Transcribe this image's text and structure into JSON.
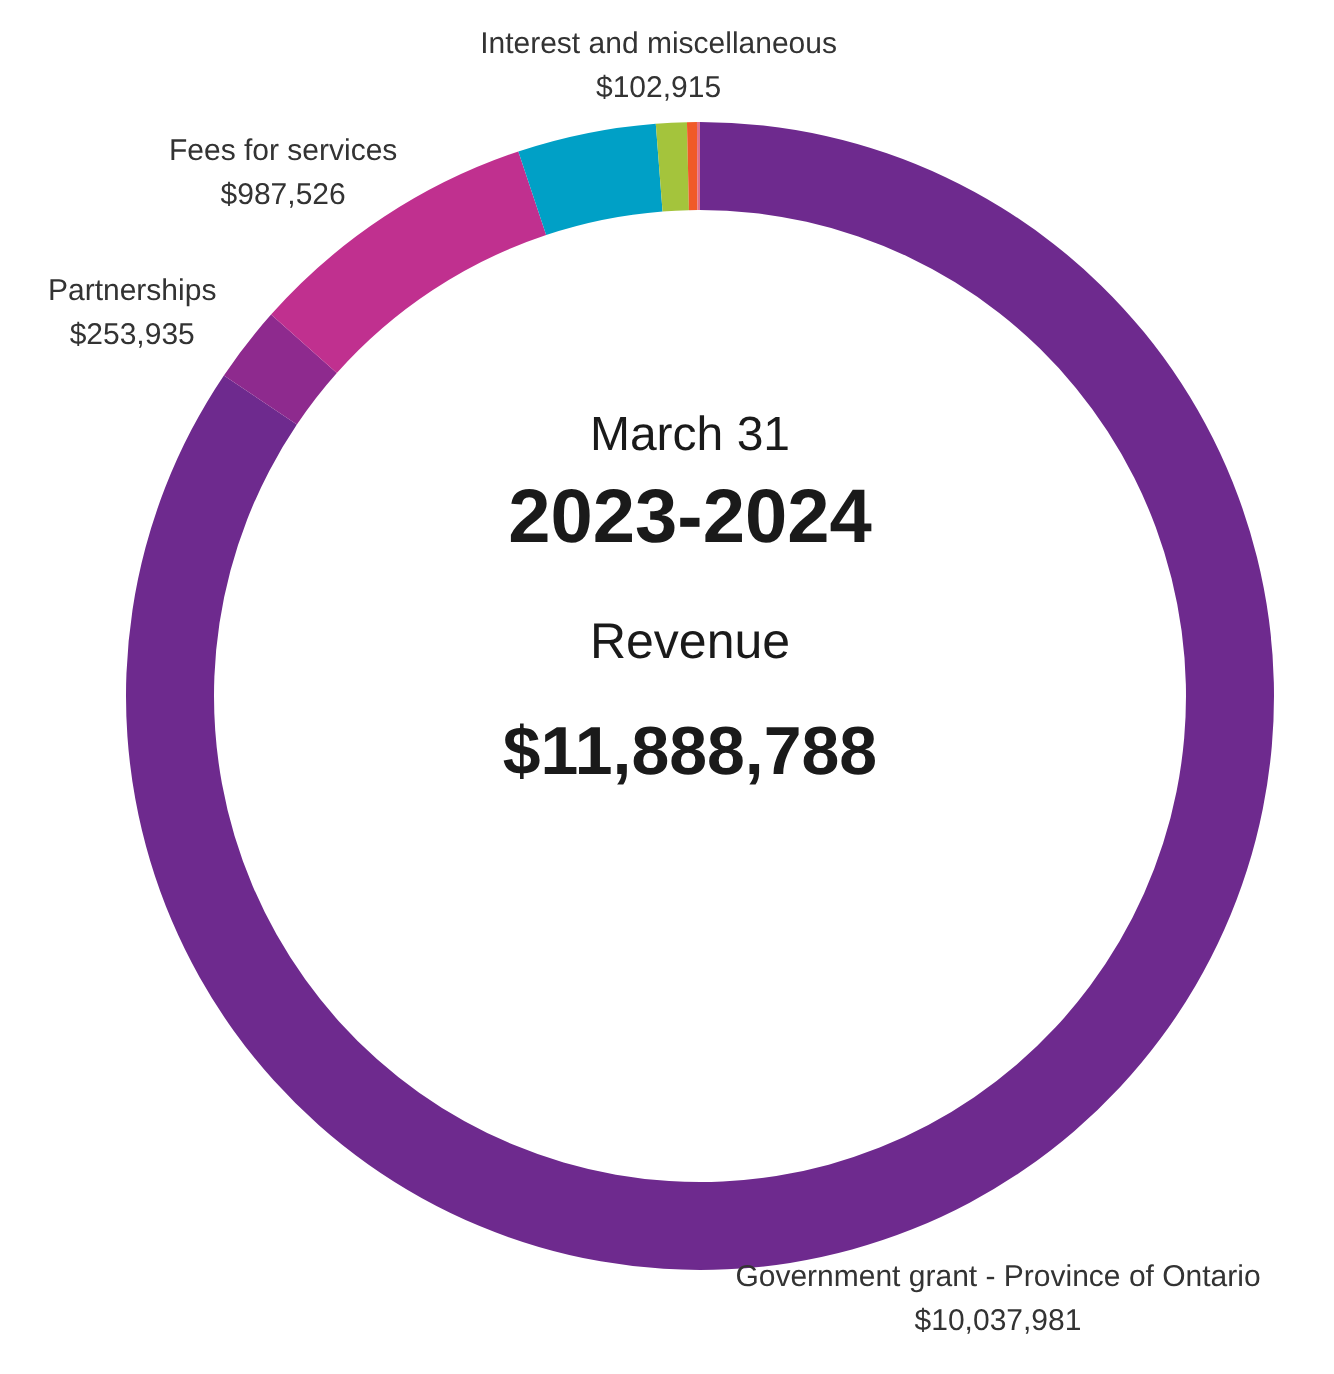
{
  "chart_data": {
    "type": "donut",
    "categories": [
      "Government grant - Province of Ontario",
      "Partnerships",
      "Fees for services",
      null,
      "Interest and miscellaneous",
      null,
      null
    ],
    "values": [
      10037981,
      253935,
      987526,
      463431,
      102915,
      33000,
      10000
    ],
    "value_labels": [
      "$10,037,981",
      "$253,935",
      "$987,526",
      null,
      "$102,915",
      null,
      null
    ],
    "colors": [
      "#6e2a8e",
      "#8e2a8e",
      "#c0308f",
      "#00a0c6",
      "#a4c43c",
      "#f05a28",
      "#e0708a"
    ],
    "annotations": [
      "March 31",
      "2023-2024",
      "Revenue",
      "$11,888,788"
    ],
    "legend": false
  }
}
